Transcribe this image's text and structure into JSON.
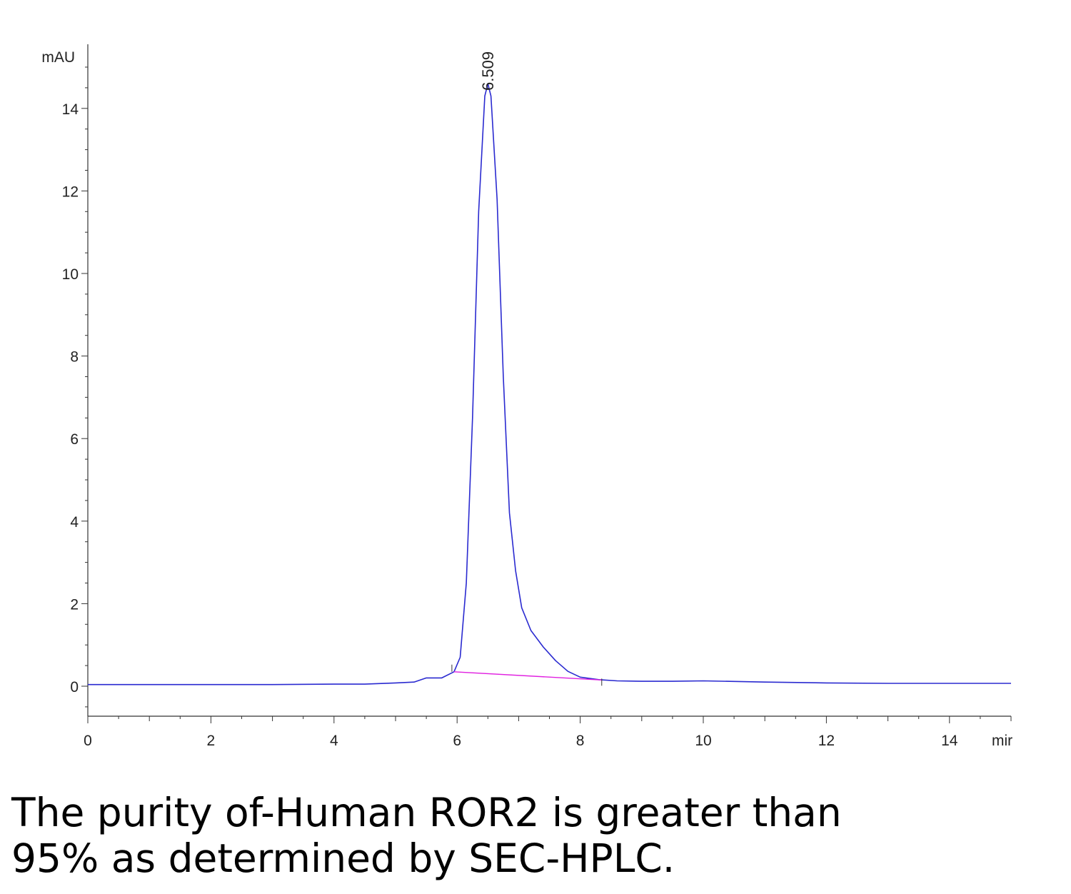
{
  "chart_data": {
    "type": "line",
    "ylabel": "mAU",
    "xlabel": "mir",
    "xlim": [
      0,
      15
    ],
    "ylim": [
      -0.7,
      15.4
    ],
    "x_ticks": [
      0,
      2,
      4,
      6,
      8,
      10,
      12,
      14
    ],
    "y_ticks": [
      0,
      2,
      4,
      6,
      8,
      10,
      12,
      14
    ],
    "grid": false,
    "series": [
      {
        "color": "#2a2ad0",
        "x": [
          0,
          1,
          2,
          3,
          4,
          4.5,
          5.0,
          5.3,
          5.5,
          5.75,
          5.95,
          6.05,
          6.15,
          6.25,
          6.35,
          6.45,
          6.5,
          6.55,
          6.65,
          6.75,
          6.85,
          6.95,
          7.05,
          7.2,
          7.4,
          7.6,
          7.8,
          8.0,
          8.3,
          8.6,
          9.0,
          9.5,
          10,
          11,
          12,
          13,
          14,
          15
        ],
        "y": [
          0.04,
          0.04,
          0.04,
          0.04,
          0.05,
          0.05,
          0.08,
          0.1,
          0.2,
          0.2,
          0.35,
          0.7,
          2.5,
          6.5,
          11.5,
          14.3,
          14.6,
          14.3,
          11.8,
          7.5,
          4.2,
          2.8,
          1.9,
          1.35,
          0.95,
          0.62,
          0.36,
          0.22,
          0.16,
          0.13,
          0.12,
          0.12,
          0.13,
          0.1,
          0.08,
          0.07,
          0.07,
          0.07
        ]
      },
      {
        "color": "#e020e0",
        "x": [
          5.95,
          8.35
        ],
        "y": [
          0.35,
          0.15
        ]
      }
    ],
    "annotations": [
      {
        "text": "6.509",
        "x": 6.509,
        "y": 14.6
      }
    ]
  },
  "caption": {
    "line1": "The purity of-Human ROR2 is greater than",
    "line2": "95% as determined by SEC-HPLC."
  }
}
